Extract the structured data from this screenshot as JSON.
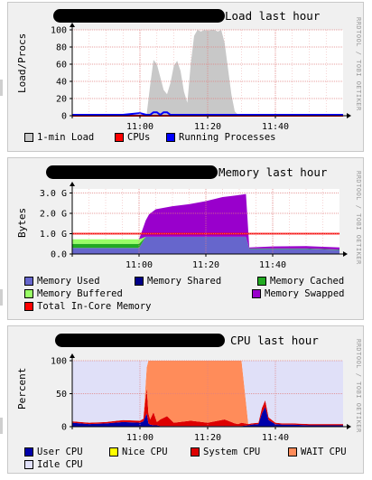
{
  "colors": {
    "panel_bg": "#f0f0f0",
    "plot_bg": "#ffffff",
    "grid_major": "#e08080",
    "grid_minor": "#f0b8b8"
  },
  "watermark": "RRDTOOL / TOBI OETIKER",
  "chart_data": [
    {
      "type": "area",
      "title": "Load last hour",
      "ylabel": "Load/Procs",
      "ylim": [
        0,
        100
      ],
      "yticks": [
        "0",
        "20",
        "40",
        "60",
        "80",
        "100"
      ],
      "xticks": [
        "11:00",
        "11:20",
        "11:40"
      ],
      "x": [
        0,
        10,
        20,
        30,
        40,
        44,
        46,
        48,
        50,
        52,
        54,
        56,
        58,
        60,
        62,
        64,
        66,
        68,
        70,
        72,
        74,
        76,
        78,
        80,
        82,
        84,
        86,
        88,
        90,
        92,
        94,
        96,
        98,
        100,
        110,
        120,
        130,
        140,
        150,
        160
      ],
      "series": [
        {
          "name": "1-min Load",
          "color": "#c8c8c8",
          "values": [
            0,
            0,
            0,
            0,
            0,
            2,
            35,
            65,
            60,
            45,
            30,
            25,
            38,
            58,
            64,
            52,
            28,
            15,
            60,
            93,
            100,
            98,
            100,
            99,
            100,
            100,
            98,
            100,
            85,
            55,
            25,
            5,
            1,
            0,
            0,
            0,
            0,
            0,
            0,
            0
          ]
        },
        {
          "name": "CPUs",
          "color": "#ff0000",
          "values": [
            0,
            0,
            0,
            0,
            0,
            0,
            0,
            0,
            0,
            0,
            0,
            0,
            0,
            0,
            0,
            0,
            0,
            0,
            0,
            0,
            0,
            0,
            0,
            0,
            0,
            0,
            0,
            0,
            0,
            0,
            0,
            0,
            0,
            0,
            0,
            0,
            0,
            0,
            0,
            0
          ]
        },
        {
          "name": "Running Processes",
          "color": "#0000ff",
          "values": [
            1,
            1,
            1,
            1,
            3,
            1,
            1,
            4,
            4,
            1,
            4,
            4,
            1,
            1,
            1,
            1,
            1,
            1,
            1,
            1,
            1,
            1,
            1,
            1,
            1,
            1,
            1,
            1,
            1,
            1,
            1,
            1,
            1,
            1,
            1,
            1,
            1,
            1,
            1,
            1
          ]
        }
      ],
      "legend": [
        {
          "label": "1-min Load",
          "color": "#c8c8c8"
        },
        {
          "label": "CPUs",
          "color": "#ff0000"
        },
        {
          "label": "Running Processes",
          "color": "#0000ff"
        }
      ]
    },
    {
      "type": "area",
      "title": "Memory last hour",
      "ylabel": "Bytes",
      "ylim": [
        0,
        3.2
      ],
      "yticks": [
        "0.0",
        "1.0 G",
        "2.0 G",
        "3.0 G"
      ],
      "xticks": [
        "11:00",
        "11:20",
        "11:40"
      ],
      "x": [
        0,
        20,
        40,
        44,
        46,
        50,
        60,
        70,
        80,
        90,
        100,
        104,
        106,
        120,
        140,
        160
      ],
      "series": [
        {
          "name": "Memory Used",
          "color": "#6666cc",
          "values": [
            0.3,
            0.3,
            0.3,
            0.85,
            0.85,
            0.85,
            0.85,
            0.85,
            0.85,
            0.85,
            0.85,
            0.85,
            0.25,
            0.25,
            0.25,
            0.2
          ]
        },
        {
          "name": "Memory Shared",
          "color": "#000088",
          "values": [
            0,
            0,
            0,
            0,
            0,
            0,
            0,
            0,
            0,
            0,
            0,
            0,
            0,
            0,
            0,
            0
          ]
        },
        {
          "name": "Memory Cached",
          "color": "#22aa22",
          "values": [
            0.2,
            0.2,
            0.2,
            0,
            0,
            0,
            0,
            0,
            0,
            0,
            0,
            0,
            0.02,
            0.02,
            0.02,
            0.02
          ]
        },
        {
          "name": "Memory Buffered",
          "color": "#99ff66",
          "values": [
            0.22,
            0.22,
            0.22,
            0,
            0,
            0,
            0,
            0,
            0,
            0,
            0,
            0,
            0,
            0,
            0,
            0
          ]
        },
        {
          "name": "Memory Swapped",
          "color": "#9900cc",
          "values": [
            0,
            0,
            0,
            0.8,
            1.1,
            1.35,
            1.5,
            1.6,
            1.75,
            1.95,
            2.05,
            2.1,
            0.05,
            0.1,
            0.12,
            0.1
          ]
        }
      ],
      "reference_line": {
        "name": "Total In-Core Memory",
        "color": "#ff0000",
        "value": 1.0
      },
      "legend": [
        {
          "label": "Memory Used",
          "color": "#6666cc"
        },
        {
          "label": "Memory Shared",
          "color": "#000088"
        },
        {
          "label": "Memory Cached",
          "color": "#22aa22"
        },
        {
          "label": "Memory Buffered",
          "color": "#99ff66"
        },
        {
          "label": "Memory Swapped",
          "color": "#9900cc"
        },
        {
          "label": "Total In-Core Memory",
          "color": "#ff0000"
        }
      ]
    },
    {
      "type": "area",
      "title": "CPU last hour",
      "ylabel": "Percent",
      "ylim": [
        0,
        100
      ],
      "yticks": [
        "0",
        "50",
        "100"
      ],
      "xticks": [
        "11:00",
        "11:20",
        "11:40"
      ],
      "x": [
        0,
        10,
        20,
        30,
        40,
        42,
        44,
        45,
        46,
        48,
        50,
        52,
        56,
        60,
        70,
        80,
        90,
        96,
        98,
        100,
        104,
        106,
        110,
        112,
        114,
        116,
        120,
        124,
        130,
        140,
        150,
        160
      ],
      "series": [
        {
          "name": "User CPU",
          "color": "#0000aa",
          "values": [
            6,
            4,
            5,
            7,
            6,
            8,
            20,
            5,
            3,
            2,
            2,
            1,
            1,
            1,
            1,
            1,
            1,
            1,
            1,
            1,
            2,
            3,
            4,
            20,
            30,
            10,
            4,
            3,
            3,
            2,
            2,
            2
          ]
        },
        {
          "name": "Nice CPU",
          "color": "#ffff00",
          "values": [
            0,
            0,
            0,
            0,
            0,
            0,
            0,
            0,
            0,
            0,
            0,
            0,
            0,
            0,
            0,
            0,
            0,
            0,
            0,
            0,
            0,
            0,
            0,
            0,
            0,
            0,
            0,
            0,
            0,
            0,
            0,
            0
          ]
        },
        {
          "name": "System CPU",
          "color": "#dd0000",
          "values": [
            2,
            2,
            2,
            3,
            3,
            4,
            40,
            15,
            8,
            20,
            5,
            10,
            15,
            5,
            8,
            5,
            10,
            4,
            3,
            5,
            2,
            2,
            2,
            8,
            10,
            4,
            2,
            2,
            2,
            2,
            2,
            2
          ]
        },
        {
          "name": "WAIT CPU",
          "color": "#ff8c5a",
          "values": [
            0,
            0,
            0,
            0,
            0,
            0,
            30,
            80,
            89,
            78,
            93,
            89,
            84,
            94,
            91,
            94,
            89,
            95,
            96,
            94,
            0,
            0,
            0,
            0,
            0,
            0,
            0,
            0,
            0,
            0,
            0,
            0
          ]
        },
        {
          "name": "Idle CPU",
          "color": "#e0e0f8",
          "values": [
            92,
            94,
            93,
            90,
            91,
            88,
            10,
            0,
            0,
            0,
            0,
            0,
            0,
            0,
            0,
            0,
            0,
            0,
            0,
            0,
            96,
            95,
            94,
            72,
            60,
            86,
            94,
            95,
            95,
            96,
            96,
            96
          ]
        }
      ],
      "legend": [
        {
          "label": "User CPU",
          "color": "#0000aa"
        },
        {
          "label": "Nice CPU",
          "color": "#ffff00"
        },
        {
          "label": "System CPU",
          "color": "#dd0000"
        },
        {
          "label": "WAIT CPU",
          "color": "#ff8c5a"
        },
        {
          "label": "Idle CPU",
          "color": "#e0e0f8"
        }
      ]
    }
  ]
}
